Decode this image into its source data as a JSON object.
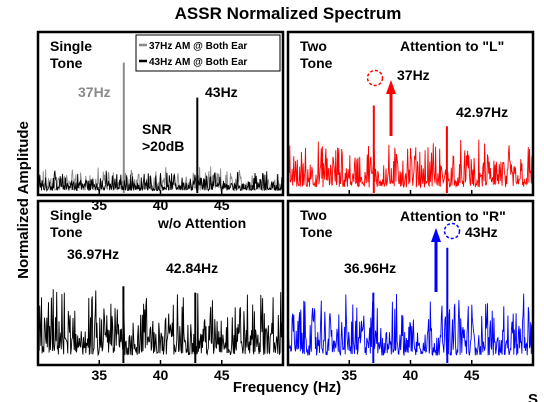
{
  "title": "ASSR Normalized Spectrum",
  "xlabel": "Frequency (Hz)",
  "ylabel": "Normalized Amplitude",
  "corner_text": "S",
  "colors": {
    "gray": "#8a8a8a",
    "black": "#000000",
    "red": "#ff0000",
    "blue": "#0000ff",
    "panel_border": "#000000"
  },
  "chart_data": [
    {
      "type": "line",
      "panel": "top-left",
      "xlim": [
        30,
        50
      ],
      "xticks": [
        35,
        40,
        45
      ],
      "grid": false,
      "legend": "top-right",
      "texts": {
        "mode": "Single\nTone",
        "snr": "SNR\n>20dB"
      },
      "series": [
        {
          "name": "37Hz AM @ Both Ear",
          "color": "gray",
          "peaks": [
            [
              37,
              0.82
            ]
          ],
          "noise_level": 0.12
        },
        {
          "name": "43Hz AM @ Both Ear",
          "color": "black",
          "peaks": [
            [
              43,
              0.6
            ]
          ],
          "noise_level": 0.1
        }
      ],
      "annotations": [
        {
          "text": "37Hz",
          "x": 37,
          "color": "gray"
        },
        {
          "text": "43Hz",
          "x": 43
        }
      ]
    },
    {
      "type": "line",
      "panel": "top-right",
      "xlim": [
        30,
        50
      ],
      "grid": false,
      "texts": {
        "mode": "Two\nTone",
        "condition": "Attention to \"L\""
      },
      "series": [
        {
          "color": "red",
          "peaks": [
            [
              37,
              0.55
            ],
            [
              42.97,
              0.42
            ]
          ],
          "noise_level": 0.24
        }
      ],
      "annotations": [
        {
          "text": "37Hz",
          "x": 37
        },
        {
          "text": "42.97Hz",
          "x": 42.97
        }
      ]
    },
    {
      "type": "line",
      "panel": "bottom-left",
      "xlim": [
        30,
        50
      ],
      "xticks": [
        35,
        40,
        45
      ],
      "grid": false,
      "texts": {
        "mode": "Single\nTone",
        "condition": "w/o Attention"
      },
      "series": [
        {
          "color": "black",
          "peaks": [
            [
              36.97,
              0.48
            ],
            [
              42.84,
              0.44
            ]
          ],
          "noise_level": 0.33
        }
      ],
      "annotations": [
        {
          "text": "36.97Hz",
          "x": 36.97
        },
        {
          "text": "42.84Hz",
          "x": 42.84
        }
      ]
    },
    {
      "type": "line",
      "panel": "bottom-right",
      "xlim": [
        30,
        50
      ],
      "xticks": [
        35,
        40,
        45
      ],
      "grid": false,
      "texts": {
        "mode": "Two\nTone",
        "condition": "Attention to \"R\""
      },
      "series": [
        {
          "color": "blue",
          "peaks": [
            [
              36.96,
              0.44
            ],
            [
              43,
              0.72
            ]
          ],
          "noise_level": 0.31
        }
      ],
      "annotations": [
        {
          "text": "36.96Hz",
          "x": 36.96
        },
        {
          "text": "43Hz",
          "x": 43
        }
      ]
    }
  ]
}
